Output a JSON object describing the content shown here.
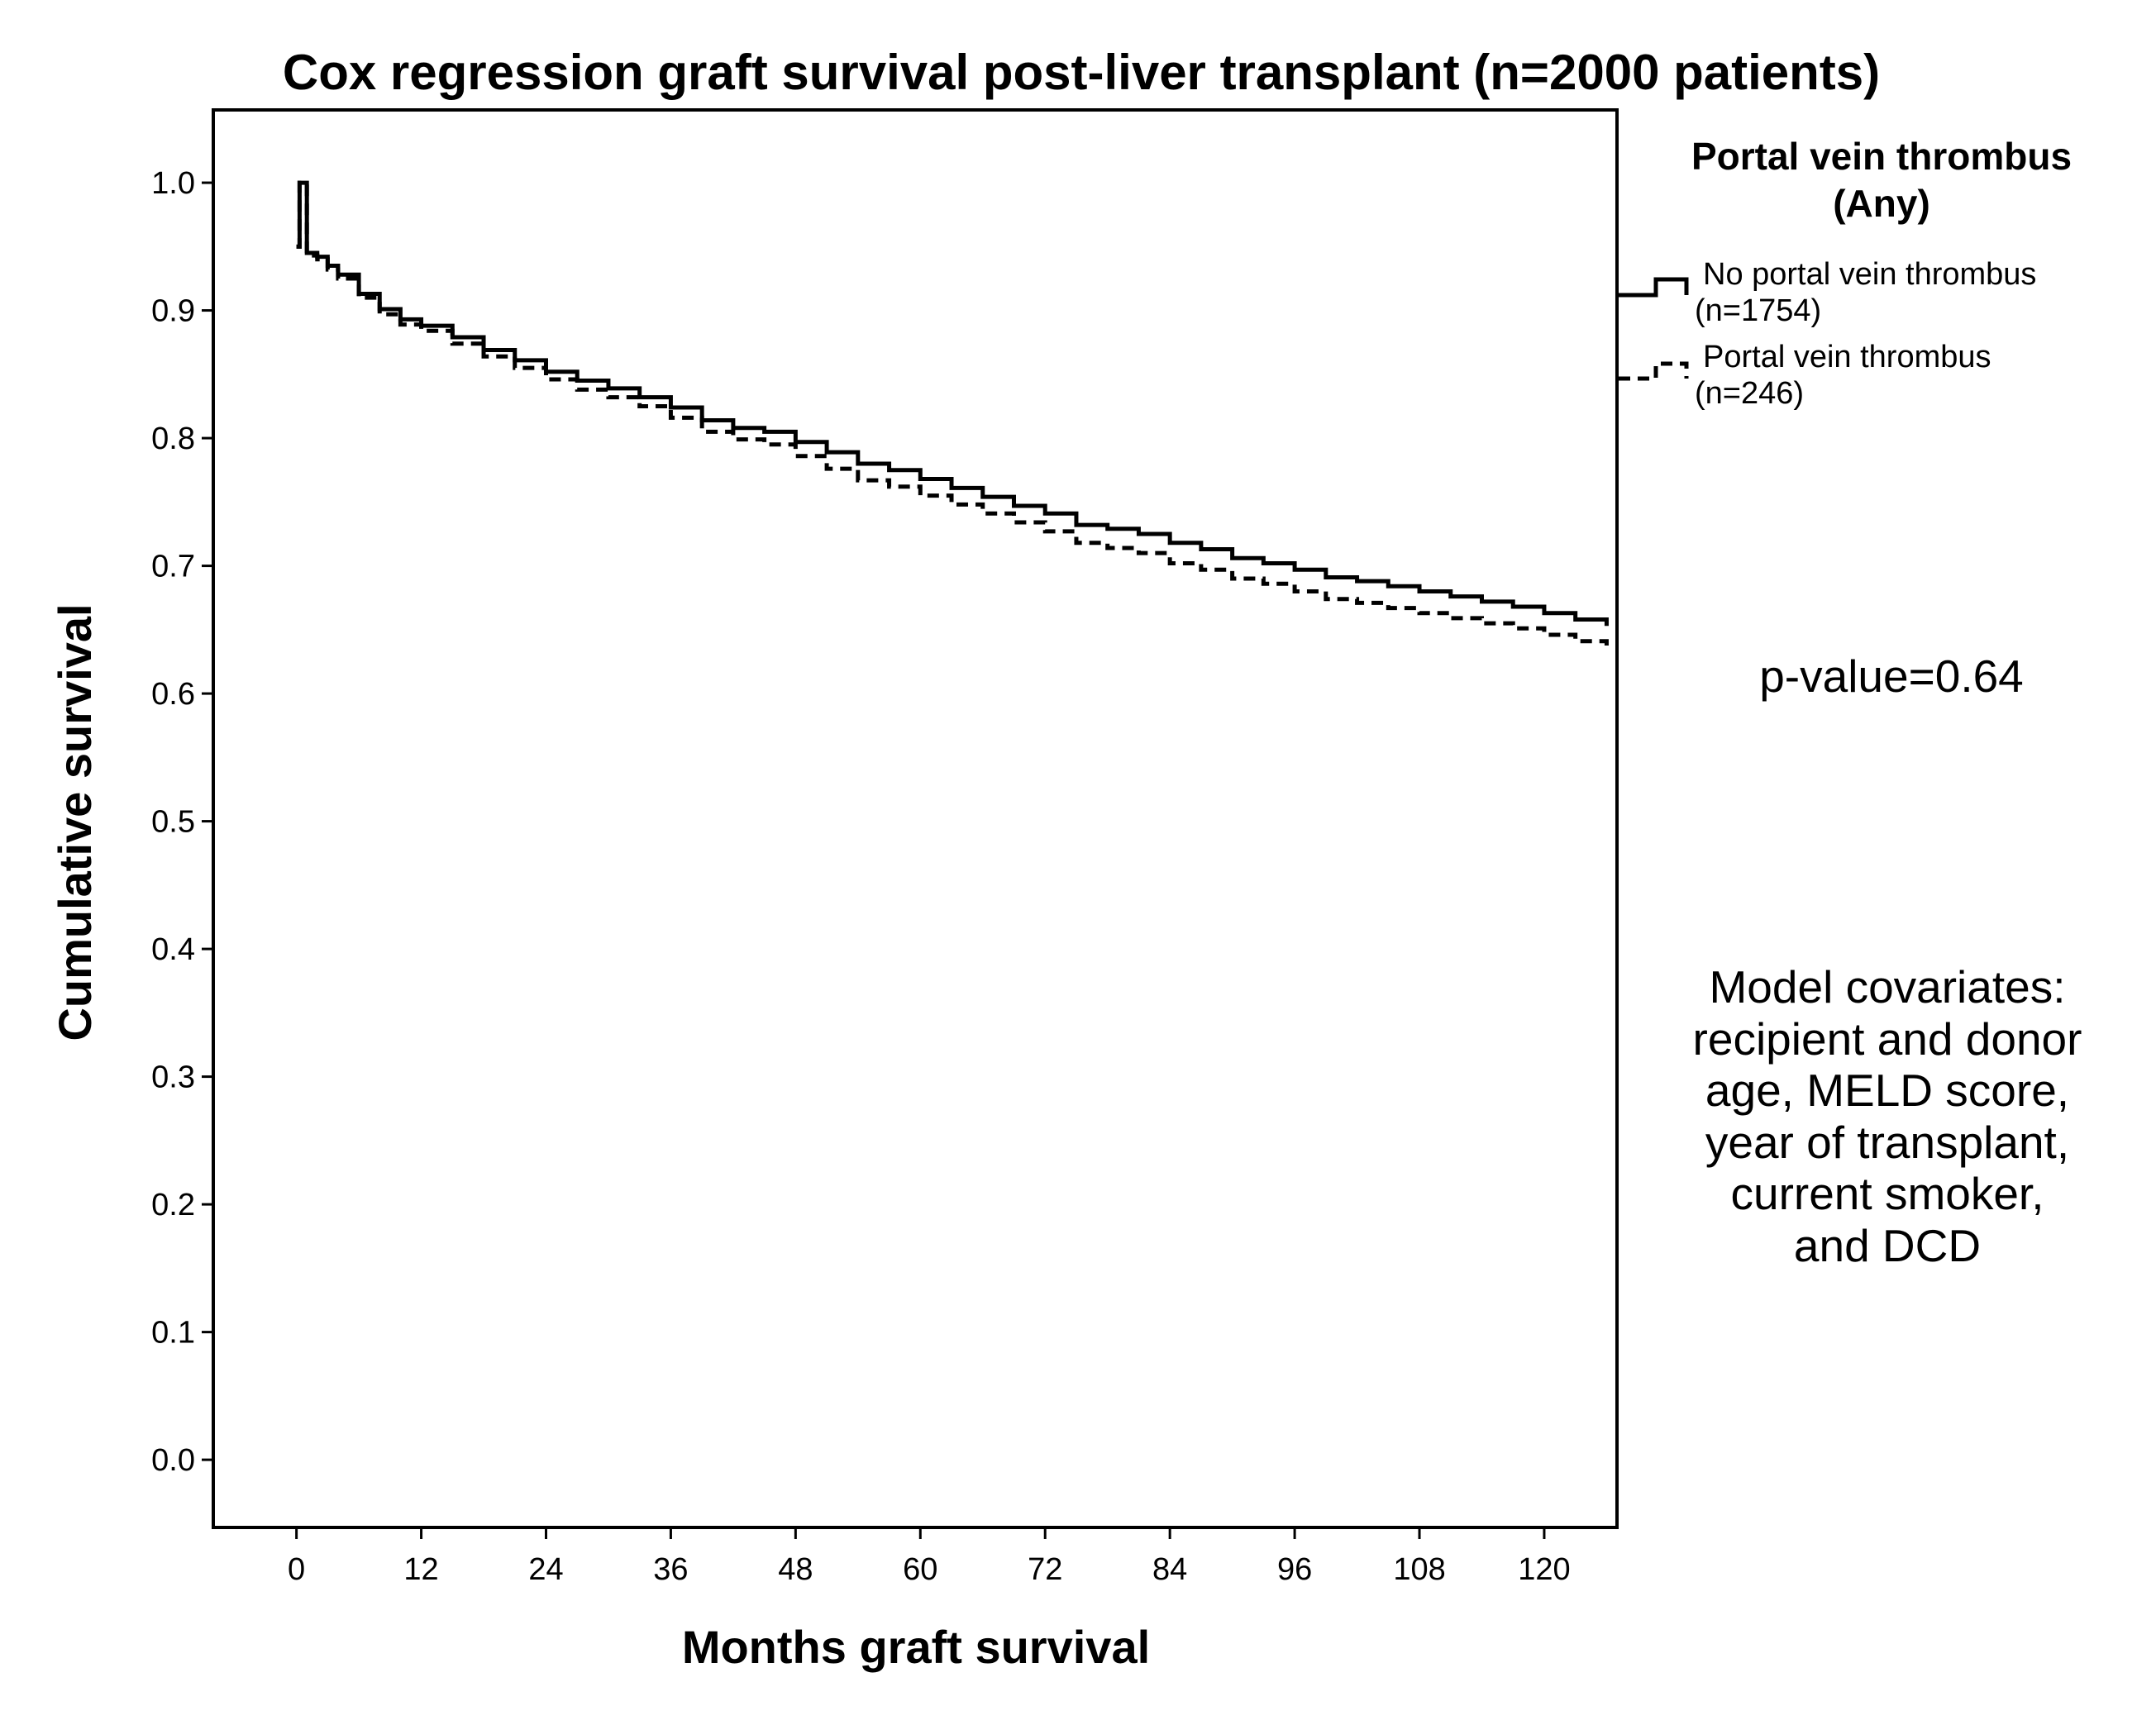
{
  "chart_data": {
    "type": "line",
    "title": "Cox regression graft survival post-liver transplant (n=2000 patients)",
    "xlabel": "Months graft survival",
    "ylabel": "Cumulative survival",
    "xlim": [
      -8,
      127
    ],
    "ylim": [
      -0.053,
      1.057
    ],
    "xticks": [
      "0",
      "12",
      "24",
      "36",
      "48",
      "60",
      "72",
      "84",
      "96",
      "108",
      "120"
    ],
    "yticks": [
      "0.0",
      "0.1",
      "0.2",
      "0.3",
      "0.4",
      "0.5",
      "0.6",
      "0.7",
      "0.8",
      "0.9",
      "1.0"
    ],
    "grid": false,
    "legend": {
      "title": [
        "Portal vein thrombus",
        "(Any)"
      ],
      "placement": "right",
      "entries": [
        {
          "label_lines": [
            "No portal vein thrombus",
            "(n=1754)"
          ],
          "style": "solid"
        },
        {
          "label_lines": [
            "Portal vein thrombus",
            "(n=246)"
          ],
          "style": "dashed"
        }
      ]
    },
    "series": [
      {
        "name": "No portal vein thrombus (n=1754)",
        "style": "solid",
        "x": [
          0,
          0.3,
          1,
          2,
          3,
          4,
          6,
          8,
          10,
          12,
          15,
          18,
          21,
          24,
          27,
          30,
          33,
          36,
          39,
          42,
          45,
          48,
          51,
          54,
          57,
          60,
          63,
          66,
          69,
          72,
          75,
          78,
          81,
          84,
          87,
          90,
          93,
          96,
          99,
          102,
          105,
          108,
          111,
          114,
          117,
          120,
          123,
          126
        ],
        "y": [
          0.95,
          1.0,
          0.945,
          0.942,
          0.935,
          0.928,
          0.913,
          0.901,
          0.893,
          0.888,
          0.879,
          0.869,
          0.861,
          0.852,
          0.845,
          0.839,
          0.832,
          0.824,
          0.814,
          0.808,
          0.805,
          0.797,
          0.789,
          0.78,
          0.775,
          0.768,
          0.761,
          0.754,
          0.747,
          0.741,
          0.732,
          0.729,
          0.725,
          0.718,
          0.713,
          0.706,
          0.702,
          0.697,
          0.691,
          0.688,
          0.684,
          0.68,
          0.676,
          0.672,
          0.668,
          0.663,
          0.658,
          0.653
        ]
      },
      {
        "name": "Portal vein thrombus (n=246)",
        "style": "dashed",
        "x": [
          0,
          0.3,
          1,
          2,
          3,
          4,
          6,
          8,
          10,
          12,
          15,
          18,
          21,
          24,
          27,
          30,
          33,
          36,
          39,
          42,
          45,
          48,
          51,
          54,
          57,
          60,
          63,
          66,
          69,
          72,
          75,
          78,
          81,
          84,
          87,
          90,
          93,
          96,
          99,
          102,
          105,
          108,
          111,
          114,
          117,
          120,
          123,
          126
        ],
        "y": [
          0.95,
          1.0,
          0.943,
          0.94,
          0.932,
          0.925,
          0.91,
          0.897,
          0.889,
          0.884,
          0.874,
          0.864,
          0.855,
          0.846,
          0.838,
          0.832,
          0.825,
          0.816,
          0.805,
          0.799,
          0.795,
          0.786,
          0.776,
          0.767,
          0.762,
          0.755,
          0.748,
          0.741,
          0.734,
          0.727,
          0.718,
          0.714,
          0.71,
          0.702,
          0.697,
          0.69,
          0.686,
          0.68,
          0.674,
          0.671,
          0.667,
          0.663,
          0.659,
          0.655,
          0.651,
          0.646,
          0.641,
          0.637
        ]
      }
    ],
    "annotations": {
      "p_value": "p-value=0.64",
      "covariates_lines": [
        "Model covariates:",
        "recipient and donor",
        "age, MELD score,",
        "year of transplant,",
        "current smoker,",
        "and DCD"
      ]
    }
  }
}
